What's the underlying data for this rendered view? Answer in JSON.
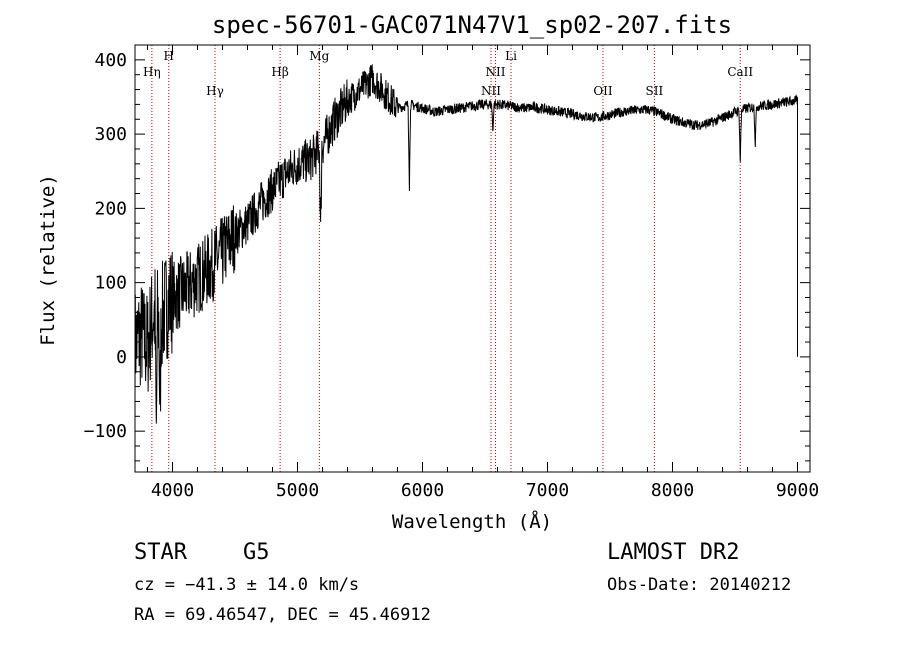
{
  "chart_data": {
    "type": "line",
    "title": "spec-56701-GAC071N47V1_sp02-207.fits",
    "xlabel": "Wavelength (Å)",
    "ylabel": "Flux (relative)",
    "xlim": [
      3700,
      9100
    ],
    "ylim": [
      -155,
      420
    ],
    "x_ticks": [
      {
        "value": 4000,
        "label": "4000"
      },
      {
        "value": 5000,
        "label": "5000"
      },
      {
        "value": 6000,
        "label": "6000"
      },
      {
        "value": 7000,
        "label": "7000"
      },
      {
        "value": 8000,
        "label": "8000"
      },
      {
        "value": 9000,
        "label": "9000"
      }
    ],
    "y_ticks": [
      {
        "value": -100,
        "label": "−100"
      },
      {
        "value": 0,
        "label": "0"
      },
      {
        "value": 100,
        "label": "100"
      },
      {
        "value": 200,
        "label": "200"
      },
      {
        "value": 300,
        "label": "300"
      },
      {
        "value": 400,
        "label": "400"
      }
    ],
    "spectrum_color": "#000000",
    "line_marker_color": "#cc0000",
    "spectral_lines": [
      {
        "label": "Hη",
        "wavelength": 3835,
        "row": 1
      },
      {
        "label": "H",
        "wavelength": 3970,
        "row": 0
      },
      {
        "label": "Hγ",
        "wavelength": 4340,
        "row": 2
      },
      {
        "label": "Hβ",
        "wavelength": 4861,
        "row": 1
      },
      {
        "label": "Mg",
        "wavelength": 5175,
        "row": 0
      },
      {
        "label": "NII",
        "wavelength": 6548,
        "row": 2
      },
      {
        "label": "NII",
        "wavelength": 6584,
        "row": 1
      },
      {
        "label": "Li",
        "wavelength": 6708,
        "row": 0
      },
      {
        "label": "OII",
        "wavelength": 7444,
        "row": 2
      },
      {
        "label": "SII",
        "wavelength": 7855,
        "row": 2
      },
      {
        "label": "CaII",
        "wavelength": 8542,
        "row": 1
      }
    ],
    "spectrum_anchors": [
      [
        3700,
        20
      ],
      [
        3750,
        30
      ],
      [
        3800,
        15
      ],
      [
        3850,
        60
      ],
      [
        3900,
        45
      ],
      [
        3950,
        70
      ],
      [
        4000,
        80
      ],
      [
        4100,
        90
      ],
      [
        4200,
        105
      ],
      [
        4300,
        120
      ],
      [
        4400,
        140
      ],
      [
        4500,
        165
      ],
      [
        4600,
        180
      ],
      [
        4700,
        205
      ],
      [
        4800,
        225
      ],
      [
        4900,
        245
      ],
      [
        5000,
        260
      ],
      [
        5100,
        265
      ],
      [
        5200,
        285
      ],
      [
        5300,
        320
      ],
      [
        5400,
        345
      ],
      [
        5500,
        360
      ],
      [
        5600,
        375
      ],
      [
        5700,
        355
      ],
      [
        5800,
        335
      ],
      [
        5900,
        340
      ],
      [
        6000,
        335
      ],
      [
        6100,
        330
      ],
      [
        6200,
        333
      ],
      [
        6300,
        335
      ],
      [
        6400,
        338
      ],
      [
        6500,
        340
      ],
      [
        6600,
        340
      ],
      [
        6700,
        338
      ],
      [
        6800,
        335
      ],
      [
        6900,
        336
      ],
      [
        7000,
        333
      ],
      [
        7100,
        330
      ],
      [
        7200,
        327
      ],
      [
        7300,
        324
      ],
      [
        7400,
        322
      ],
      [
        7500,
        326
      ],
      [
        7600,
        330
      ],
      [
        7700,
        332
      ],
      [
        7800,
        333
      ],
      [
        7900,
        328
      ],
      [
        8000,
        320
      ],
      [
        8100,
        315
      ],
      [
        8200,
        312
      ],
      [
        8300,
        315
      ],
      [
        8400,
        322
      ],
      [
        8500,
        330
      ],
      [
        8600,
        335
      ],
      [
        8700,
        338
      ],
      [
        8800,
        340
      ],
      [
        8900,
        343
      ],
      [
        9000,
        345
      ]
    ],
    "spectrum_dips": [
      {
        "x": 3870,
        "y": -110
      },
      {
        "x": 3900,
        "y": -80
      },
      {
        "x": 5185,
        "y": 165
      },
      {
        "x": 5895,
        "y": 230
      },
      {
        "x": 6563,
        "y": 305
      },
      {
        "x": 8542,
        "y": 260
      },
      {
        "x": 8662,
        "y": 285
      }
    ]
  },
  "info": {
    "object_type": "STAR",
    "subclass": "G5",
    "redshift": "cz = −41.3 ± 14.0 km/s",
    "coords": "RA =  69.46547, DEC =  45.46912",
    "survey": "LAMOST DR2",
    "obs_date": "Obs-Date: 20140212"
  }
}
